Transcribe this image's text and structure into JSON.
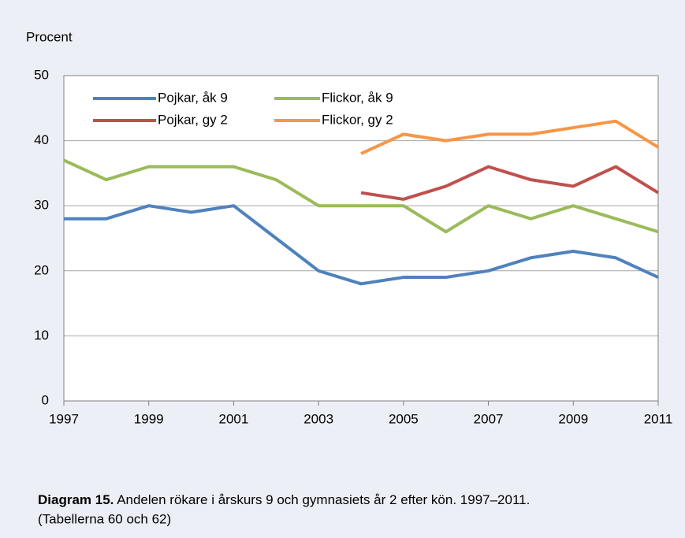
{
  "chart_data": {
    "type": "line",
    "y_axis_label": "Procent",
    "x": [
      1997,
      1998,
      1999,
      2000,
      2001,
      2002,
      2003,
      2004,
      2005,
      2006,
      2007,
      2008,
      2009,
      2010,
      2011
    ],
    "xlim": [
      1997,
      2011
    ],
    "xticks": [
      1997,
      1999,
      2001,
      2003,
      2005,
      2007,
      2009,
      2011
    ],
    "ylim": [
      0,
      50
    ],
    "yticks": [
      0,
      10,
      20,
      30,
      40,
      50
    ],
    "grid": true,
    "legend": "top-left",
    "series": [
      {
        "name": "Pojkar, åk 9",
        "color": "#4f81bd",
        "values": [
          28,
          28,
          30,
          29,
          30,
          25,
          20,
          18,
          19,
          19,
          20,
          22,
          23,
          22,
          19
        ]
      },
      {
        "name": "Flickor, åk 9",
        "color": "#9bbb59",
        "values": [
          37,
          34,
          36,
          36,
          36,
          34,
          30,
          30,
          30,
          26,
          30,
          28,
          30,
          28,
          26
        ]
      },
      {
        "name": "Pojkar, gy 2",
        "color": "#c0504d",
        "values": [
          null,
          null,
          null,
          null,
          null,
          null,
          null,
          32,
          31,
          33,
          36,
          34,
          33,
          36,
          32
        ]
      },
      {
        "name": "Flickor, gy 2",
        "color": "#f79646",
        "values": [
          null,
          null,
          null,
          null,
          null,
          null,
          null,
          38,
          41,
          40,
          41,
          41,
          42,
          43,
          39
        ]
      }
    ],
    "caption": {
      "label": "Diagram 15.",
      "text": "Andelen rökare i årskurs 9 och gymnasiets år 2 efter kön. 1997–2011.",
      "note": "(Tabellerna 60 och 62)"
    }
  }
}
